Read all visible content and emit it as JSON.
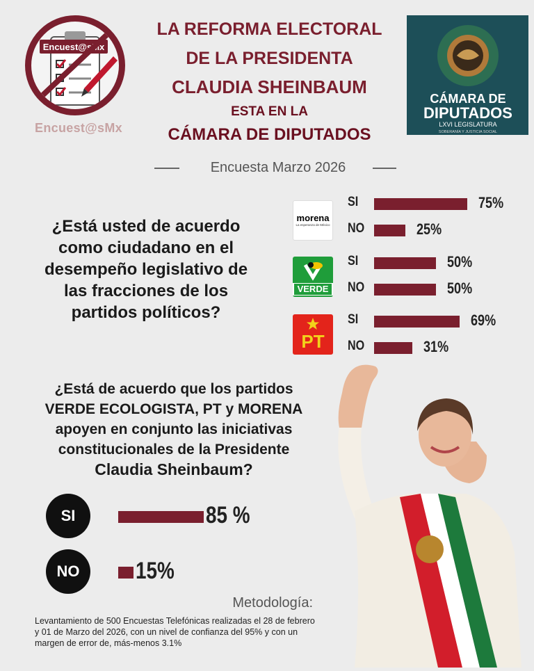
{
  "header": {
    "logo_caption": "Encuest@sMx",
    "logo_badge": "Encuest@sMx",
    "title_lines": [
      "LA REFORMA ELECTORAL",
      "DE LA PRESIDENTA",
      "CLAUDIA SHEINBAUM",
      "ESTA EN LA",
      "CÁMARA DE DIPUTADOS"
    ],
    "chamber_logo": {
      "line1": "CÁMARA DE",
      "line2": "DIPUTADOS",
      "line3": "LXVI LEGISLATURA",
      "line4": "SOBERANÍA Y JUSTICIA SOCIAL"
    }
  },
  "survey_date": "Encuesta Marzo 2026",
  "question1": {
    "lines": [
      "¿Está usted de acuerdo",
      "como ciudadano en el",
      "desempeño legislativo de",
      "las fracciones de los",
      "partidos políticos?"
    ]
  },
  "party_logos": {
    "morena": {
      "name": "morena",
      "tagline": "La esperanza de México",
      "color": "#b5252c"
    },
    "verde": {
      "name": "VERDE",
      "color": "#1f9d3a"
    },
    "pt": {
      "name": "PT",
      "color": "#e3241b"
    }
  },
  "question2": {
    "lines": [
      "¿Está de acuerdo que los partidos",
      "VERDE ECOLOGISTA, PT y MORENA",
      "apoyen en conjunto las iniciativas",
      "constitucionales de la Presidente",
      "Claudia Sheinbaum?"
    ]
  },
  "methodology": {
    "title": "Metodología:",
    "text": "Levantamiento de 500 Encuestas Telefónicas realizadas el 28 de febrero y 01 de Marzo del 2026, con un nivel de confianza del 95% y con un margen de error de, más-menos 3.1%"
  },
  "colors": {
    "accent": "#7a1f2e",
    "background": "#ececec",
    "disc": "#101010"
  },
  "chart_data": [
    {
      "type": "bar",
      "orientation": "horizontal",
      "groups": [
        {
          "party": "morena",
          "categories": [
            "SI",
            "NO"
          ],
          "values": [
            75,
            25
          ],
          "labels": [
            "75%",
            "25%"
          ]
        },
        {
          "party": "VERDE",
          "categories": [
            "SI",
            "NO"
          ],
          "values": [
            50,
            50
          ],
          "labels": [
            "50%",
            "50%"
          ]
        },
        {
          "party": "PT",
          "categories": [
            "SI",
            "NO"
          ],
          "values": [
            69,
            31
          ],
          "labels": [
            "69%",
            "31%"
          ]
        }
      ],
      "xlim": [
        0,
        100
      ]
    },
    {
      "type": "bar",
      "orientation": "horizontal",
      "categories": [
        "SI",
        "NO"
      ],
      "values": [
        85,
        15
      ],
      "labels": [
        "85 %",
        "15%"
      ],
      "xlim": [
        0,
        100
      ]
    }
  ]
}
